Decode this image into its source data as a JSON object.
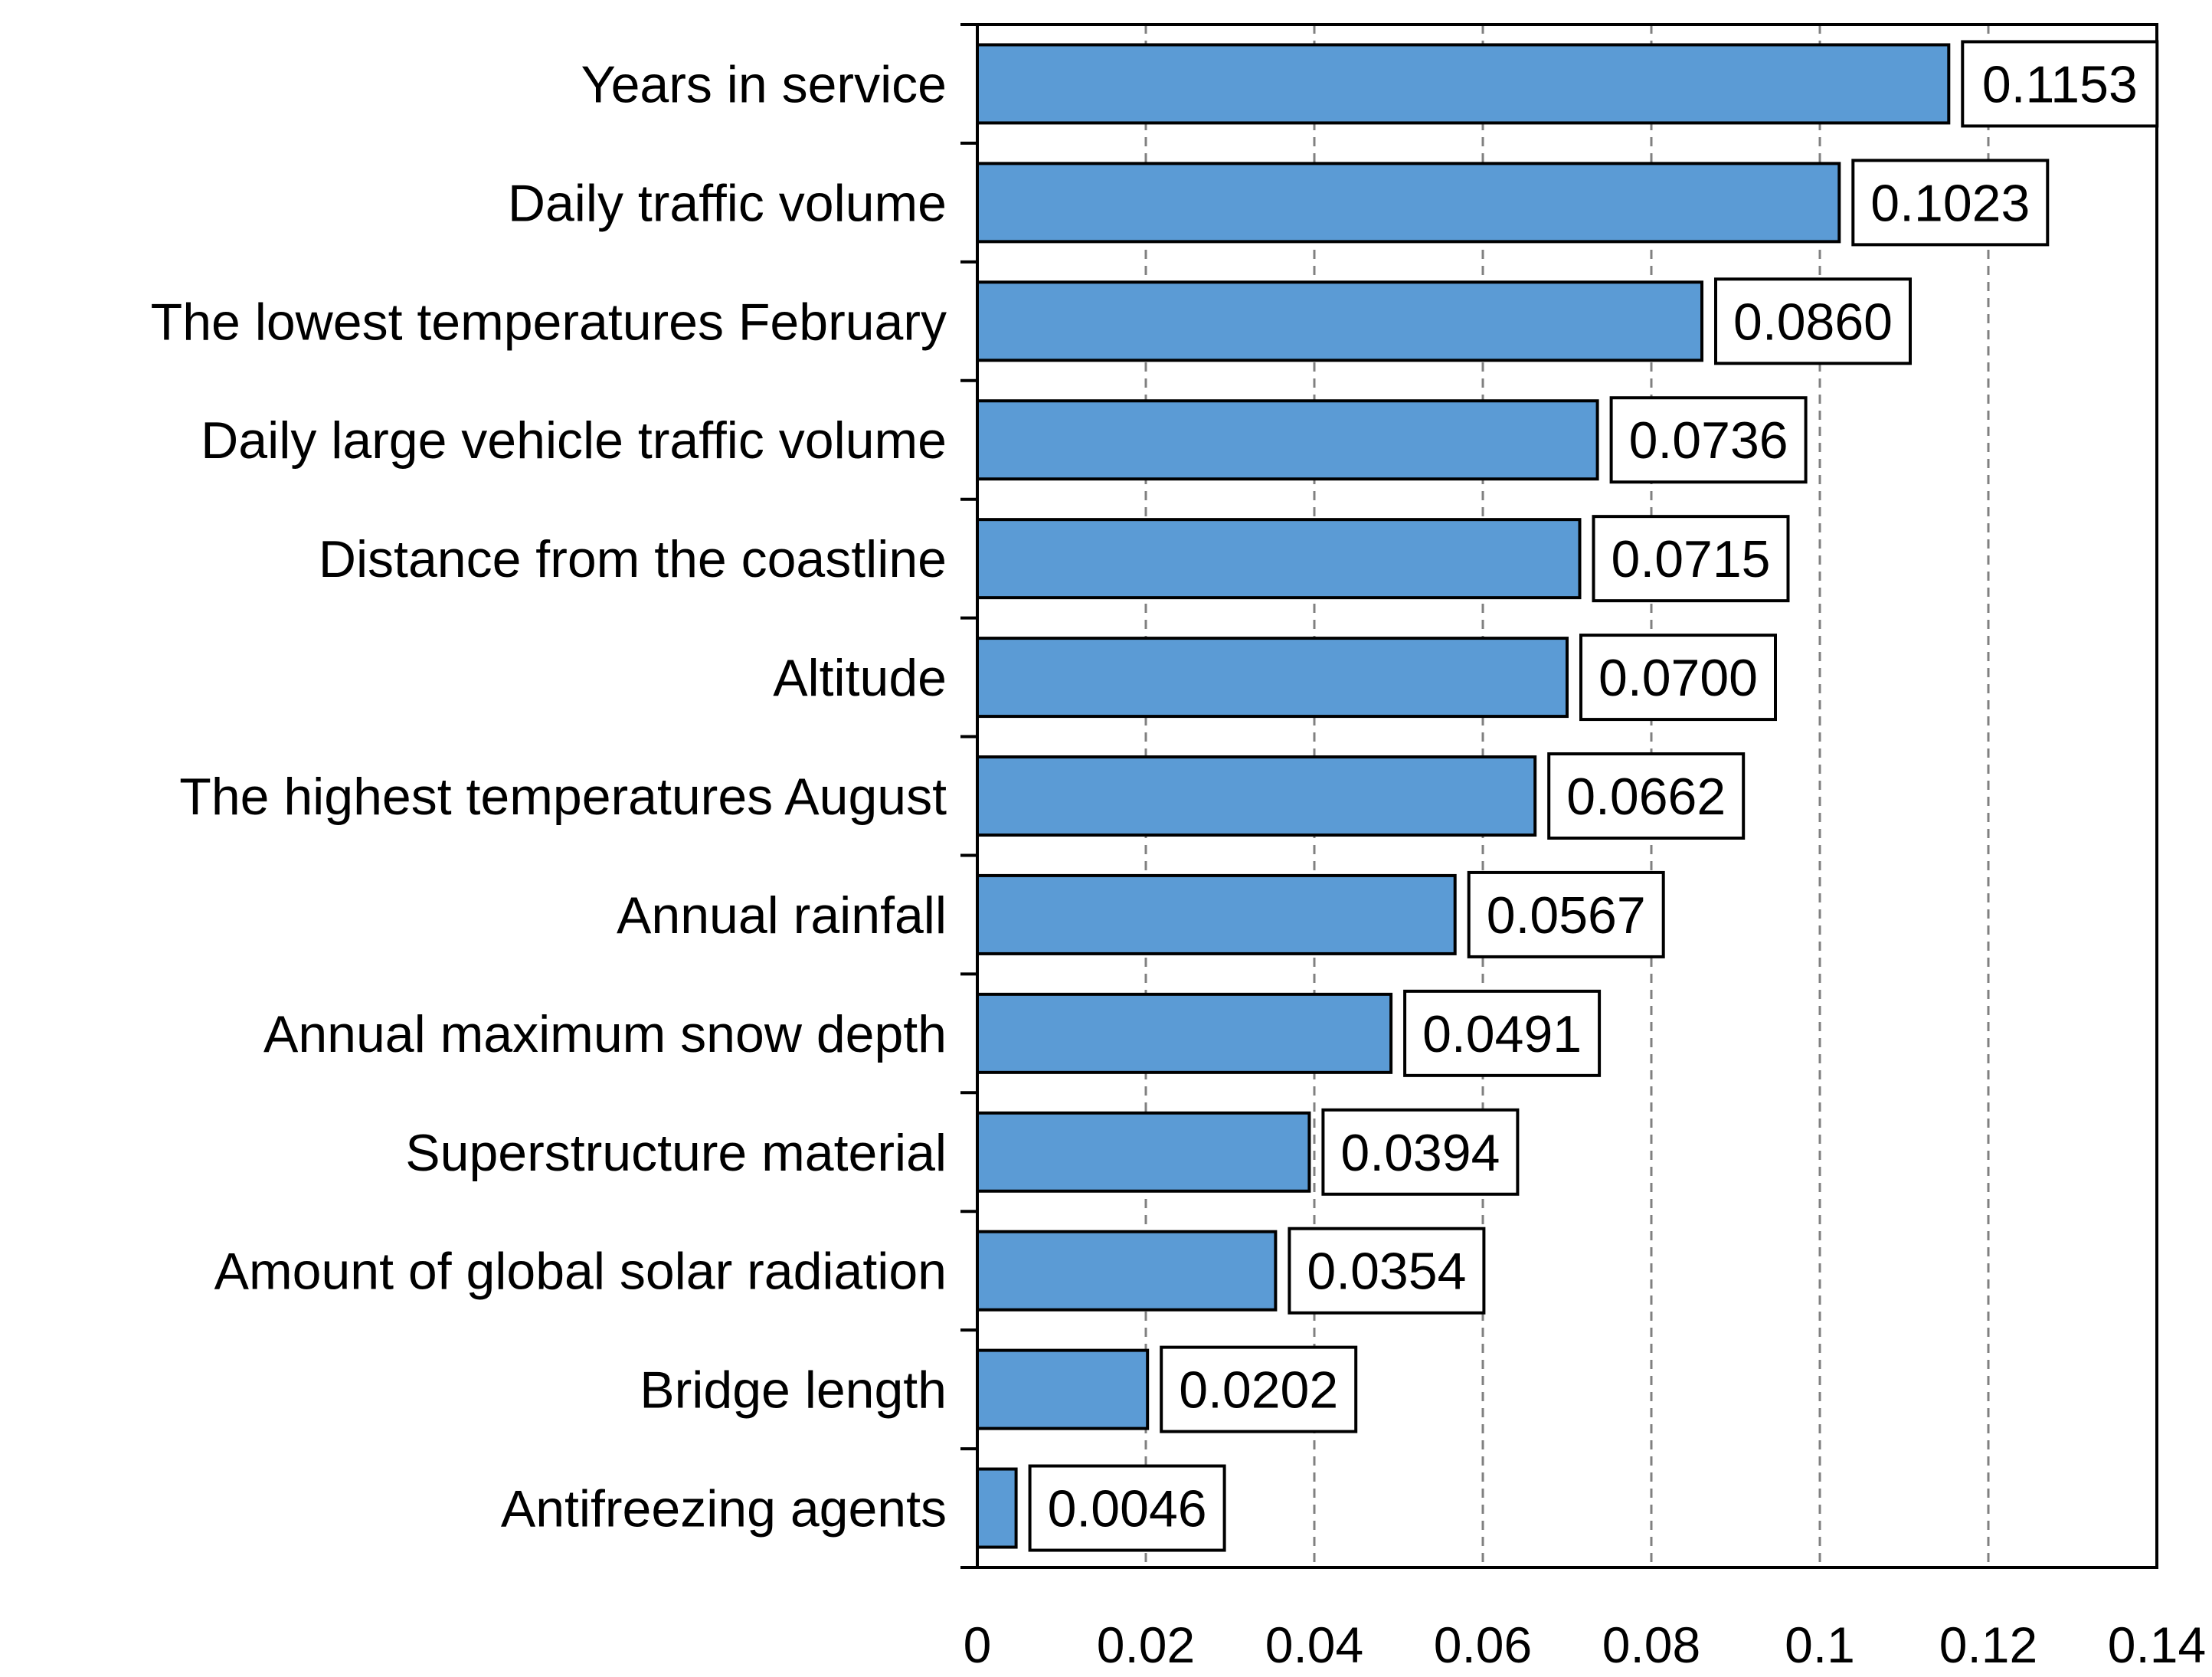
{
  "chart_data": {
    "type": "bar",
    "orientation": "horizontal",
    "title": "",
    "xlabel": "",
    "ylabel": "",
    "categories": [
      "Years in service",
      "Daily traffic volume",
      "The lowest temperatures February",
      "Daily large vehicle traffic volume",
      "Distance from the coastline",
      "Altitude",
      "The highest temperatures August",
      "Annual rainfall",
      "Annual maximum snow depth",
      "Superstructure material",
      "Amount of global solar radiation",
      "Bridge length",
      "Antifreezing agents"
    ],
    "values": [
      0.1153,
      0.1023,
      0.086,
      0.0736,
      0.0715,
      0.07,
      0.0662,
      0.0567,
      0.0491,
      0.0394,
      0.0354,
      0.0202,
      0.0046
    ],
    "value_labels": [
      "0.1153",
      "0.1023",
      "0.0860",
      "0.0736",
      "0.0715",
      "0.0700",
      "0.0662",
      "0.0567",
      "0.0491",
      "0.0394",
      "0.0354",
      "0.0202",
      "0.0046"
    ],
    "xlim": [
      0,
      0.14
    ],
    "xticks": [
      0,
      0.02,
      0.04,
      0.06,
      0.08,
      0.1,
      0.12,
      0.14
    ],
    "xtick_labels": [
      "0",
      "0.02",
      "0.04",
      "0.06",
      "0.08",
      "0.1",
      "0.12",
      "0.14"
    ],
    "grid": "vertical dashed",
    "legend": "none",
    "colors": {
      "bar": "#5b9bd5",
      "bar_edge": "#000000",
      "grid": "#808080",
      "axis": "#000000"
    }
  }
}
